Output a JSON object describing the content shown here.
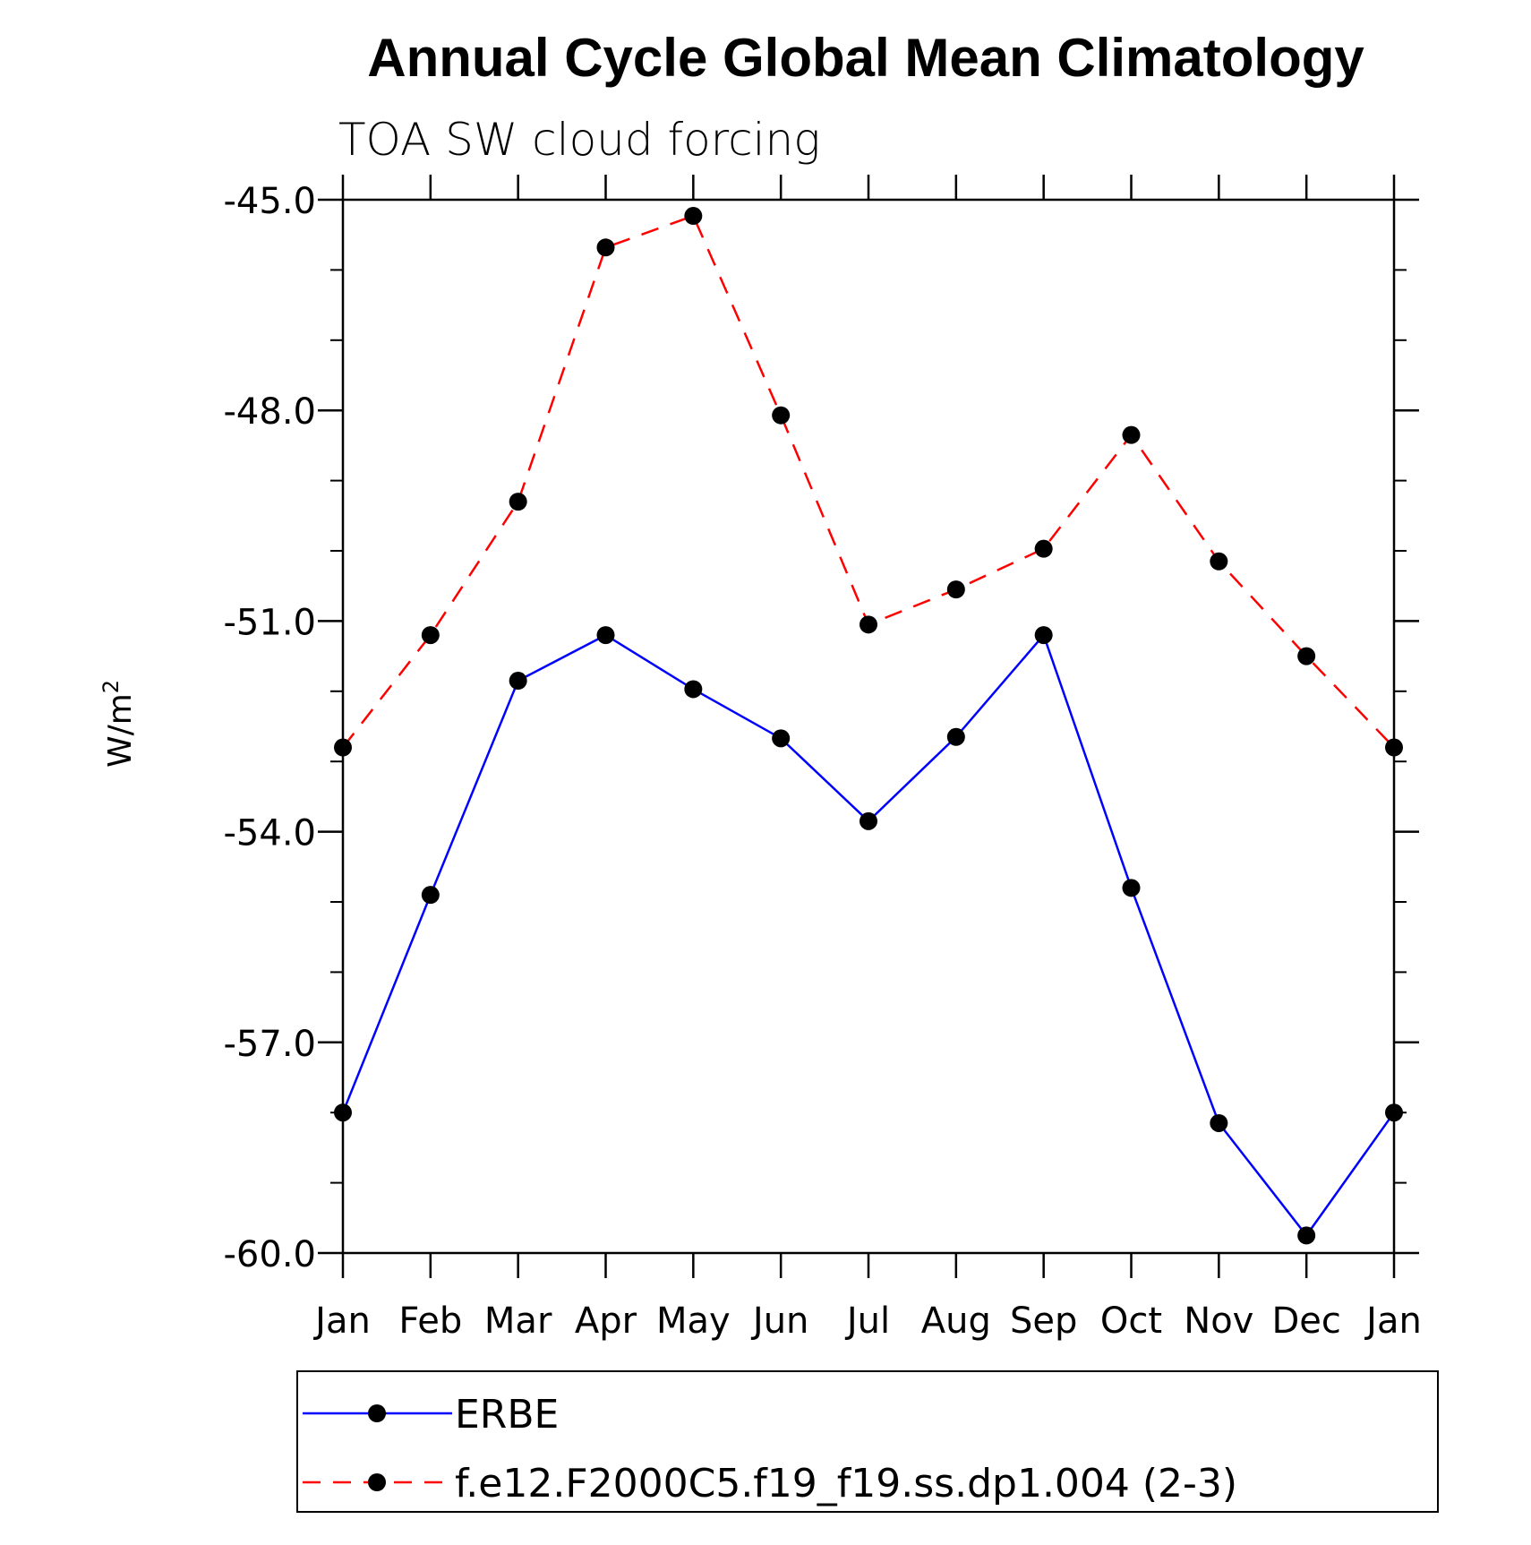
{
  "chart_data": {
    "type": "line",
    "title": "Annual Cycle Global Mean Climatology",
    "subtitle": "TOA SW cloud forcing",
    "ylabel": "W/m",
    "ylabel_sup": "2",
    "xlabel": "",
    "ylim": [
      -60.0,
      -45.0
    ],
    "yticks": [
      "-45.0",
      "-48.0",
      "-51.0",
      "-54.0",
      "-57.0",
      "-60.0"
    ],
    "ytick_values": [
      -45.0,
      -48.0,
      -51.0,
      -54.0,
      -57.0,
      -60.0
    ],
    "categories": [
      "Jan",
      "Feb",
      "Mar",
      "Apr",
      "May",
      "Jun",
      "Jul",
      "Aug",
      "Sep",
      "Oct",
      "Nov",
      "Dec",
      "Jan"
    ],
    "series": [
      {
        "name": "ERBE",
        "color": "#0000ff",
        "line_style": "solid",
        "marker": "filled-circle",
        "values": [
          -58.0,
          -54.9,
          -51.85,
          -51.2,
          -51.97,
          -52.67,
          -53.85,
          -52.65,
          -51.2,
          -54.8,
          -58.15,
          -59.75,
          -58.0
        ]
      },
      {
        "name": "f.e12.F2000C5.f19_f19.ss.dp1.004 (2-3)",
        "color": "#ff0000",
        "line_style": "dashed",
        "marker": "filled-circle",
        "values": [
          -52.8,
          -51.2,
          -49.3,
          -45.68,
          -45.23,
          -48.07,
          -51.05,
          -50.55,
          -49.97,
          -48.35,
          -50.15,
          -51.5,
          -52.8
        ]
      }
    ],
    "grid": false,
    "legend_position": "bottom"
  }
}
